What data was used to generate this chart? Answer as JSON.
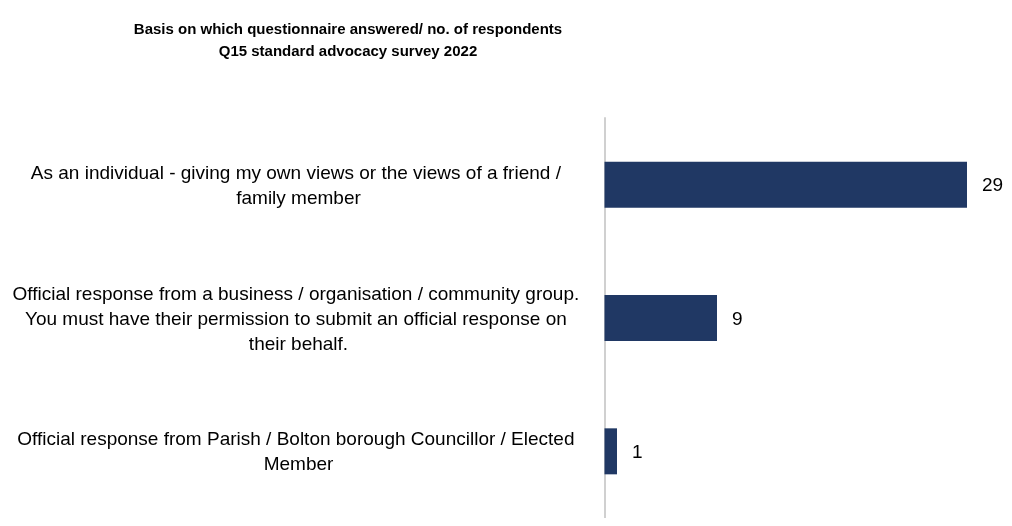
{
  "chart_data": {
    "type": "bar",
    "orientation": "horizontal",
    "title": "Basis on which questionnaire answered/ no. of respondents\nQ15 standard advocacy survey 2022",
    "categories": [
      "As an individual - giving my own views or the views of a friend / family member",
      "Official response from a business / organisation / community group. You must have their permission to submit an official response on their behalf.",
      "Official response from Parish / Bolton borough Councillor / Elected Member"
    ],
    "values": [
      29,
      9,
      1
    ],
    "color": "#203864",
    "data_labels": true
  }
}
